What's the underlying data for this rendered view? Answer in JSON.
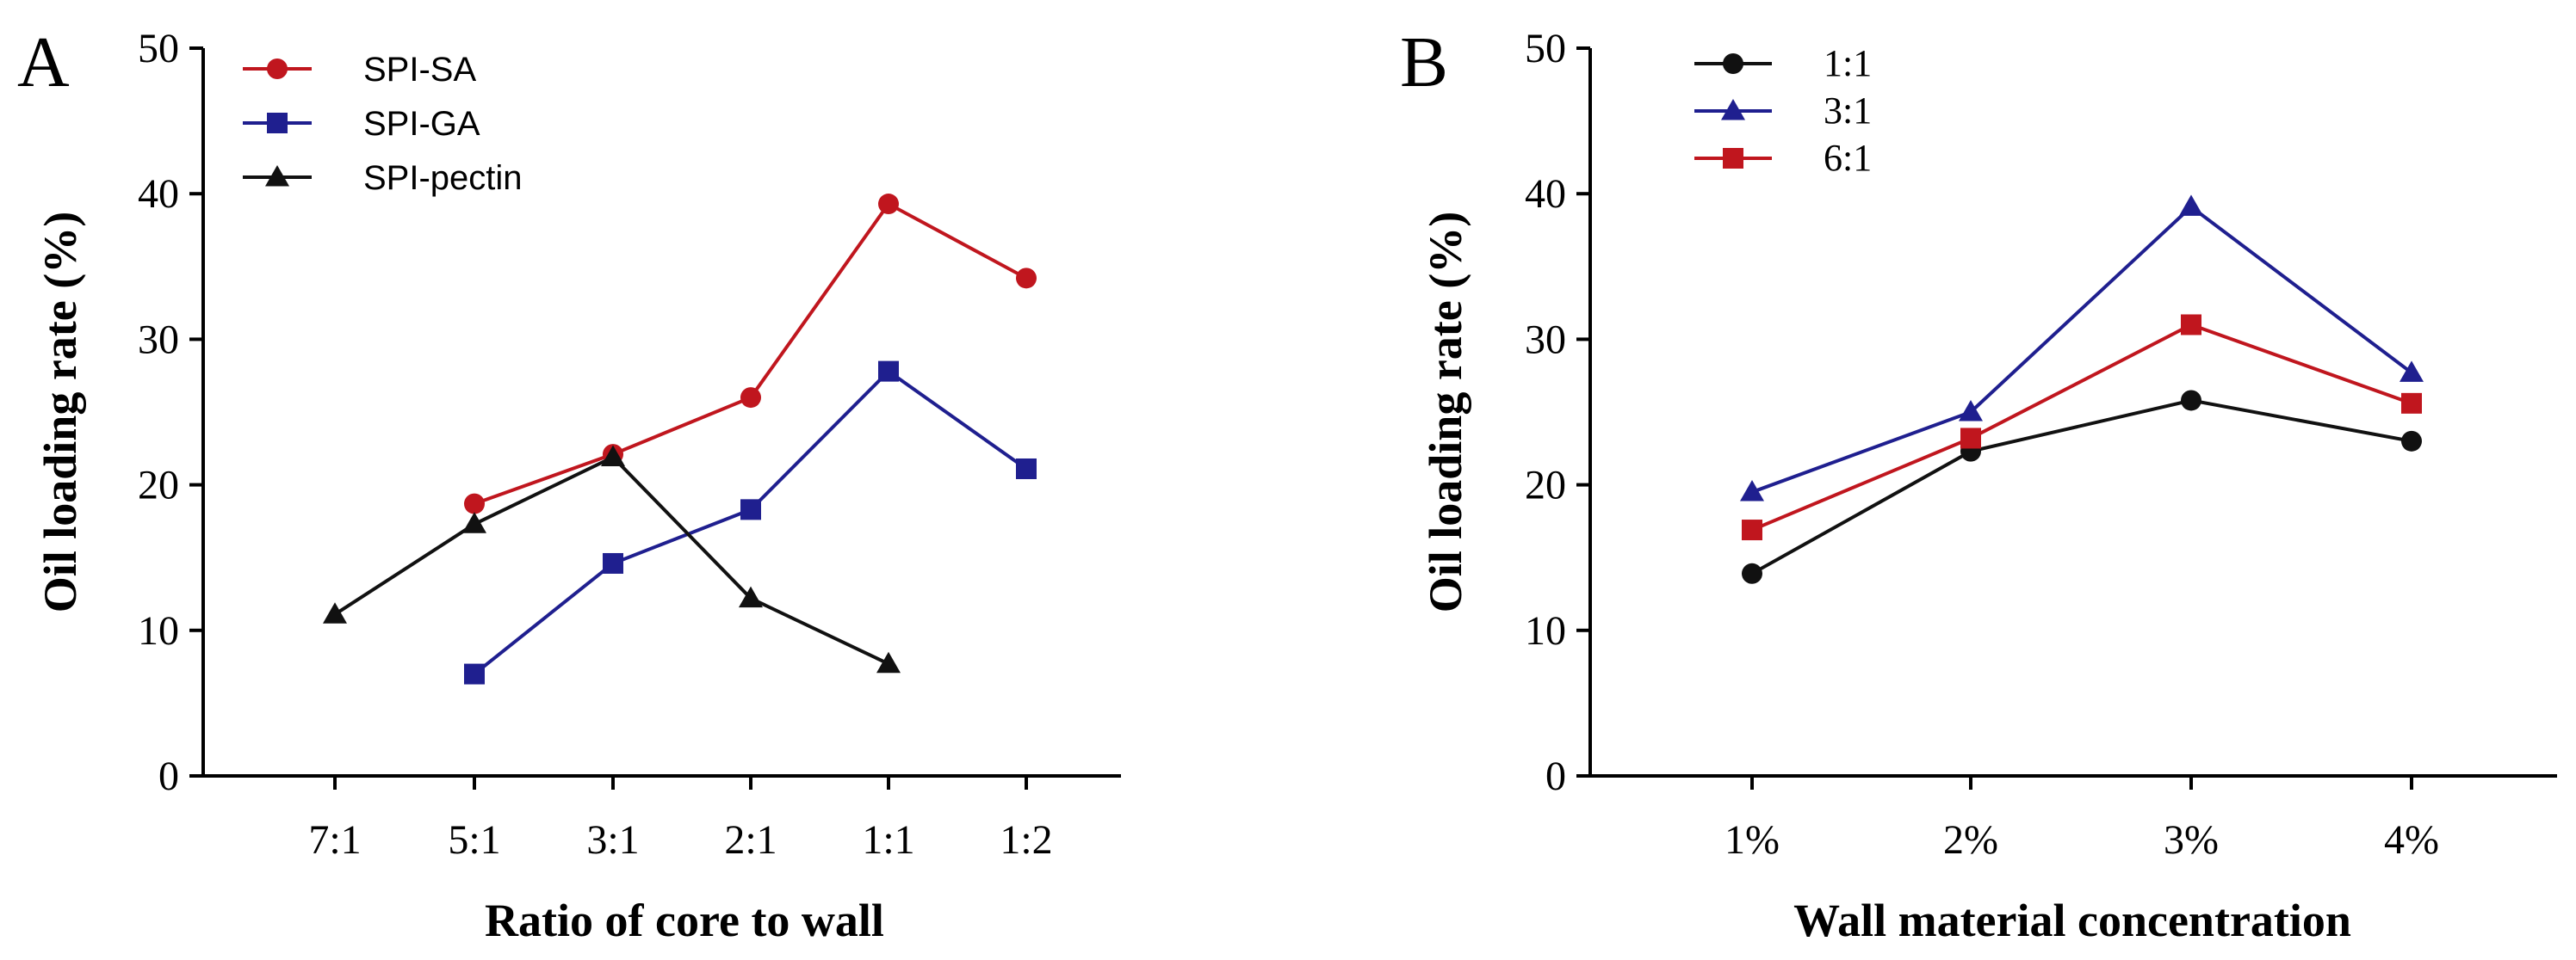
{
  "chart_data": [
    {
      "panel": "A",
      "type": "line",
      "xlabel": "Ratio of core to wall",
      "ylabel": "Oil loading rate (%)",
      "ylim": [
        0,
        50
      ],
      "yticks": [
        0,
        10,
        20,
        30,
        40,
        50
      ],
      "categories": [
        "7:1",
        "5:1",
        "3:1",
        "2:1",
        "1:1",
        "1:2"
      ],
      "legend_position": "top-left",
      "series": [
        {
          "name": "SPI-SA",
          "color": "#c0161e",
          "marker": "circle",
          "values": [
            null,
            18.7,
            22.1,
            26.0,
            39.3,
            34.2
          ]
        },
        {
          "name": "SPI-GA",
          "color": "#1f1f8f",
          "marker": "square",
          "values": [
            null,
            7.0,
            14.6,
            18.3,
            27.8,
            21.1
          ]
        },
        {
          "name": "SPI-pectin",
          "color": "#111111",
          "marker": "triangle",
          "values": [
            11.1,
            17.3,
            21.9,
            12.2,
            7.7,
            null
          ]
        }
      ]
    },
    {
      "panel": "B",
      "type": "line",
      "xlabel": "Wall material concentration",
      "ylabel": "Oil loading rate (%)",
      "ylim": [
        0,
        50
      ],
      "yticks": [
        0,
        10,
        20,
        30,
        40,
        50
      ],
      "categories": [
        "1%",
        "2%",
        "3%",
        "4%"
      ],
      "legend_position": "top-left",
      "series": [
        {
          "name": "1:1",
          "color": "#111111",
          "marker": "circle",
          "values": [
            13.9,
            22.3,
            25.8,
            23.0
          ]
        },
        {
          "name": "3:1",
          "color": "#1f1f8f",
          "marker": "triangle",
          "values": [
            19.5,
            25.0,
            39.1,
            27.7
          ]
        },
        {
          "name": "6:1",
          "color": "#c0161e",
          "marker": "square",
          "values": [
            16.9,
            23.2,
            31.0,
            25.6
          ]
        }
      ]
    }
  ]
}
